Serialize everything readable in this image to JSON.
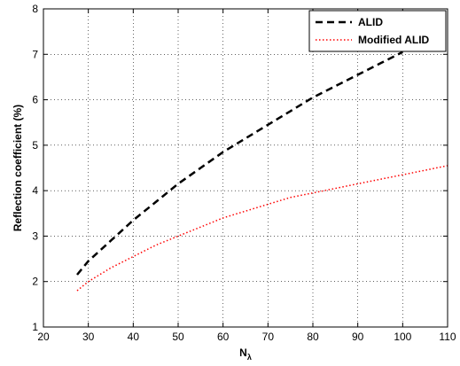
{
  "chart_data": {
    "type": "line",
    "title": "",
    "xlabel": "N",
    "xlabel_subscript": "λ",
    "ylabel": "Reflection coefficient (%)",
    "xlim": [
      20,
      110
    ],
    "ylim": [
      1,
      8
    ],
    "xticks": [
      20,
      30,
      40,
      50,
      60,
      70,
      80,
      90,
      100,
      110
    ],
    "yticks": [
      1,
      2,
      3,
      4,
      5,
      6,
      7,
      8
    ],
    "grid": true,
    "legend_position": "top-right",
    "series": [
      {
        "name": "ALID",
        "color": "#000000",
        "style": "dashed",
        "x": [
          27.5,
          30,
          35,
          40,
          45,
          50,
          55,
          60,
          65,
          70,
          75,
          80,
          85,
          90,
          95,
          100
        ],
        "y": [
          2.15,
          2.45,
          2.9,
          3.35,
          3.75,
          4.15,
          4.5,
          4.85,
          5.15,
          5.45,
          5.75,
          6.05,
          6.3,
          6.55,
          6.8,
          7.05
        ]
      },
      {
        "name": "Modified ALID",
        "color": "#ff0000",
        "style": "dotted",
        "x": [
          27.5,
          30,
          35,
          40,
          45,
          50,
          55,
          60,
          65,
          70,
          75,
          80,
          85,
          90,
          95,
          100,
          105,
          110
        ],
        "y": [
          1.8,
          2.0,
          2.3,
          2.55,
          2.8,
          3.0,
          3.2,
          3.4,
          3.55,
          3.7,
          3.85,
          3.95,
          4.05,
          4.15,
          4.25,
          4.35,
          4.45,
          4.55
        ]
      }
    ]
  }
}
